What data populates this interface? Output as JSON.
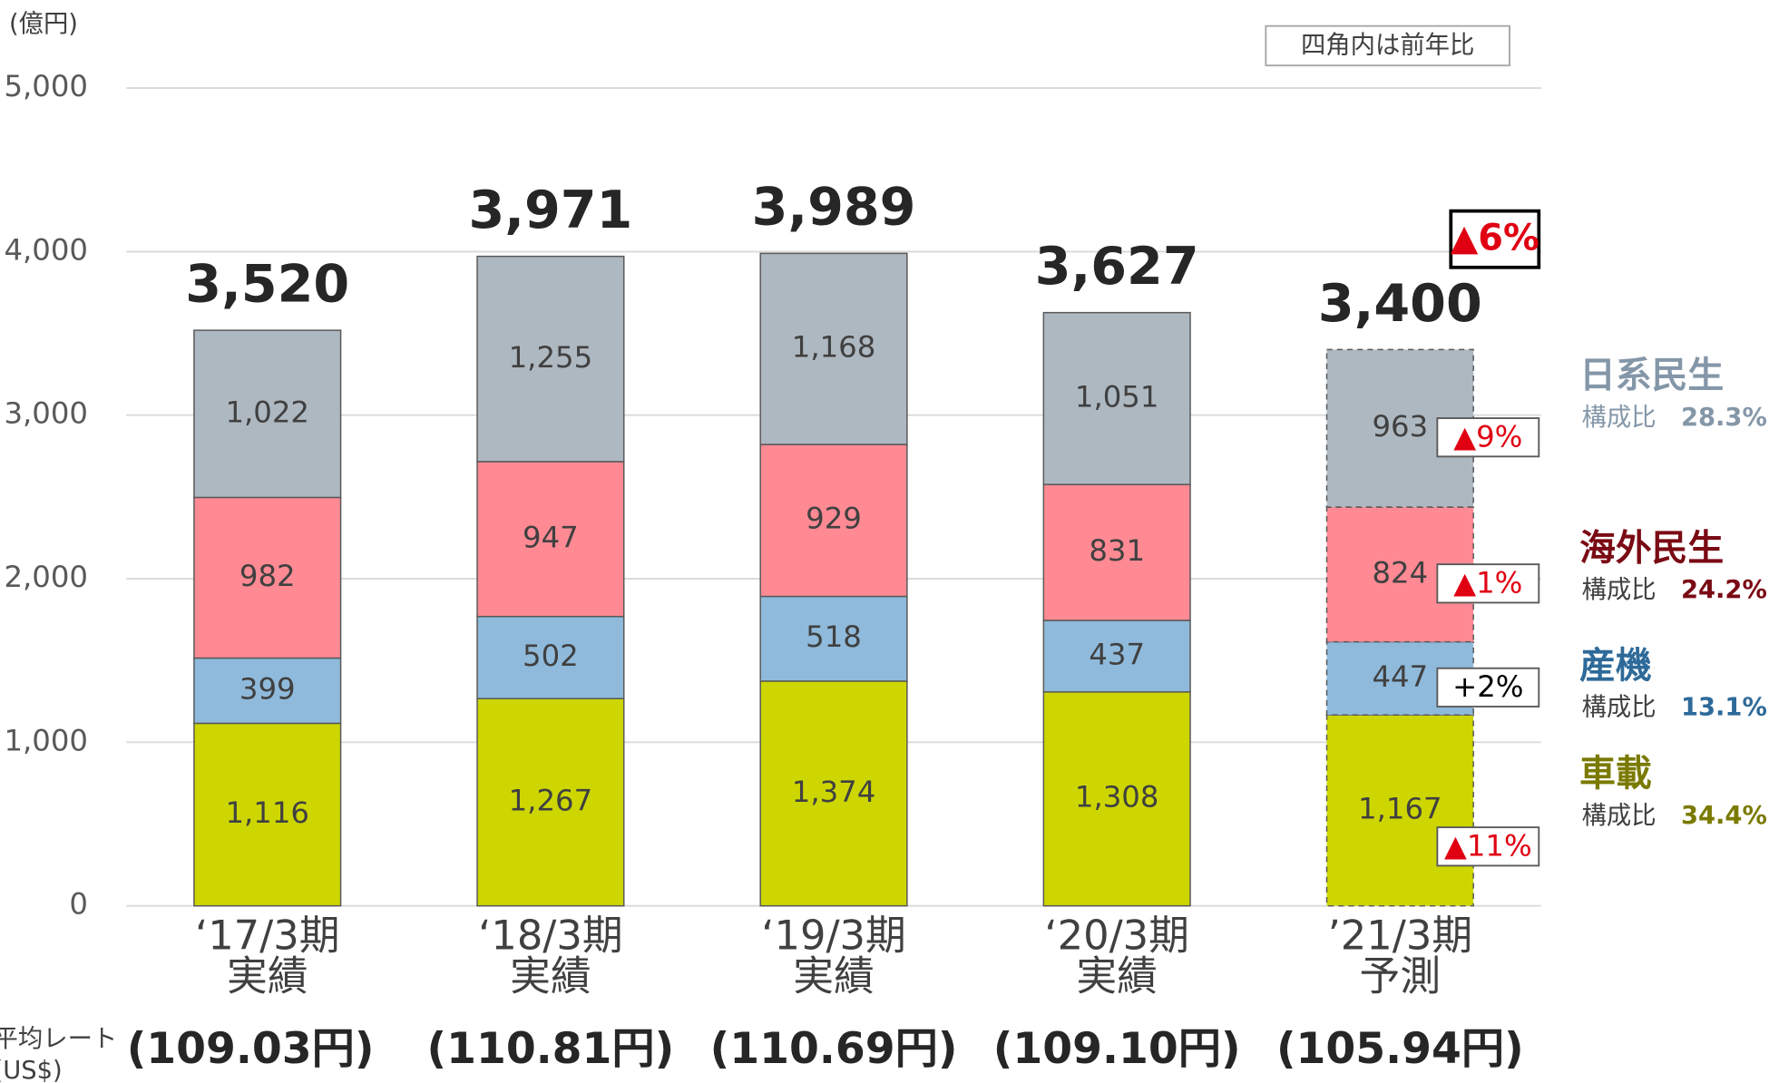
{
  "chart_data": {
    "type": "stacked_bar",
    "unit_label": "(億円)",
    "note": "四角内は前年比",
    "categories": [
      "‘17/3期",
      "‘18/3期",
      "‘19/3期",
      "‘20/3期",
      "’21/3期"
    ],
    "category_notes": [
      "実績",
      "実績",
      "実績",
      "実績",
      "予測"
    ],
    "forecast_flags": [
      false,
      false,
      false,
      false,
      true
    ],
    "rate_label_lines": [
      "平均レート",
      "(US$)"
    ],
    "rates": [
      "(109.03円)",
      "(110.81円)",
      "(110.69円)",
      "(109.10円)",
      "(105.94円)"
    ],
    "series": [
      {
        "name": "車載",
        "color": "#cdd600",
        "text_color": "#7a7a00",
        "values": [
          1116,
          1267,
          1374,
          1308,
          1167
        ],
        "value_labels": [
          "1,116",
          "1,267",
          "1,374",
          "1,308",
          "1,167"
        ],
        "share": 34.4,
        "share_label": "34.4%",
        "yoy_label": "▲11%"
      },
      {
        "name": "産機",
        "color": "#8fbadb",
        "text_color": "#2e6a99",
        "values": [
          399,
          502,
          518,
          437,
          447
        ],
        "value_labels": [
          "399",
          "502",
          "518",
          "437",
          "447"
        ],
        "share": 13.1,
        "share_label": "13.1%",
        "yoy_label": "+2%"
      },
      {
        "name": "海外民生",
        "color": "#ff8a94",
        "text_color": "#7a0a14",
        "values": [
          982,
          947,
          929,
          831,
          824
        ],
        "value_labels": [
          "982",
          "947",
          "929",
          "831",
          "824"
        ],
        "share": 24.2,
        "share_label": "24.2%",
        "yoy_label": "▲1%"
      },
      {
        "name": "日系民生",
        "color": "#aeb8c1",
        "text_color": "#8497a8",
        "values": [
          1022,
          1255,
          1168,
          1051,
          963
        ],
        "value_labels": [
          "1,022",
          "1,255",
          "1,168",
          "1,051",
          "963"
        ],
        "share": 28.3,
        "share_label": "28.3%",
        "yoy_label": "▲9%"
      }
    ],
    "share_prefix": "構成比",
    "totals": [
      3520,
      3971,
      3989,
      3627,
      3400
    ],
    "total_labels": [
      "3,520",
      "3,971",
      "3,989",
      "3,627",
      "3,400"
    ],
    "total_yoy_label": "▲6%",
    "ylim": [
      0,
      5000
    ],
    "yticks": [
      0,
      {
        "value": 1000,
        "label": "1,000"
      },
      {
        "value": 2000,
        "label": "2,000"
      },
      {
        "value": 3000,
        "label": "3,000"
      },
      {
        "value": 4000,
        "label": "4,000"
      },
      {
        "value": 5000,
        "label": "5,000"
      }
    ],
    "grid": true
  }
}
